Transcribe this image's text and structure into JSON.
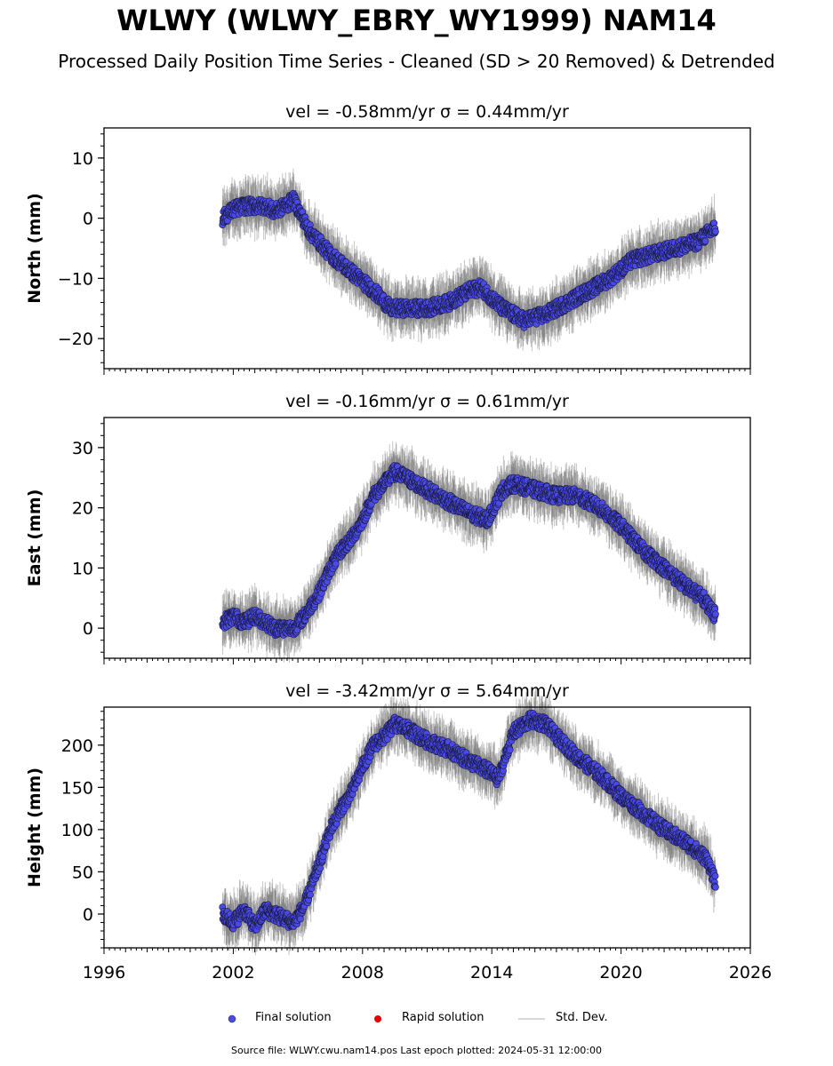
{
  "title": "WLWY (WLWY_EBRY_WY1999) NAM14",
  "subtitle": "Processed Daily Position Time Series - Cleaned (SD > 20 Removed) & Detrended",
  "footer": "Source file: WLWY.cwu.nam14.pos  Last epoch plotted: 2024-05-31 12:00:00",
  "legend": [
    {
      "label": "Final solution",
      "color": "#4a4ae8"
    },
    {
      "label": "Rapid solution",
      "color": "#e00000"
    },
    {
      "label": "Std. Dev.",
      "color": "#cccccc"
    }
  ],
  "chart_data": [
    {
      "type": "scatter",
      "panel_title": "vel = -0.58mm/yr   σ = 0.44mm/yr",
      "ylabel": "North (mm)",
      "xlim": [
        1996,
        2026
      ],
      "ylim": [
        -25,
        15
      ],
      "yticks": [
        10,
        0,
        -10,
        -20
      ],
      "ytick_labels": [
        "10",
        "0",
        "−10",
        "−20"
      ],
      "series": [
        {
          "x": [
            2001.5,
            2002.0,
            2002.5,
            2003.0,
            2003.6,
            2003.9,
            2004.8,
            2005.5,
            2006.5,
            2007.5,
            2008.5,
            2009.3,
            2010.0,
            2011.0,
            2012.0,
            2013.0,
            2013.5,
            2014.5,
            2015.5,
            2016.5,
            2017.5,
            2018.5,
            2019.5,
            2020.5,
            2021.5,
            2022.5,
            2023.5,
            2024.4
          ],
          "y": [
            0,
            1.5,
            2,
            2,
            2,
            1,
            3,
            -2,
            -6,
            -9,
            -12,
            -15,
            -15,
            -15,
            -14,
            -12,
            -11.5,
            -15,
            -17,
            -16,
            -14,
            -12,
            -10,
            -7,
            -6,
            -5,
            -4,
            -1.5
          ]
        }
      ]
    },
    {
      "type": "scatter",
      "panel_title": "vel = -0.16mm/yr   σ = 0.61mm/yr",
      "ylabel": "East (mm)",
      "xlim": [
        1996,
        2026
      ],
      "ylim": [
        -5,
        35
      ],
      "yticks": [
        30,
        20,
        10,
        0
      ],
      "ytick_labels": [
        "30",
        "20",
        "10",
        "0"
      ],
      "series": [
        {
          "x": [
            2001.5,
            2002.0,
            2002.5,
            2003.0,
            2003.5,
            2003.9,
            2004.8,
            2005.3,
            2006.0,
            2006.5,
            2007.0,
            2007.5,
            2008.0,
            2008.5,
            2009.0,
            2009.5,
            2010.0,
            2011.0,
            2012.0,
            2013.0,
            2013.8,
            2014.5,
            2015.0,
            2016.0,
            2017.0,
            2018.0,
            2019.0,
            2020.0,
            2021.0,
            2022.0,
            2023.0,
            2023.8,
            2024.4
          ],
          "y": [
            1,
            2,
            1,
            2,
            1,
            0,
            0,
            2,
            6,
            10,
            13,
            15,
            18,
            22,
            24,
            26,
            25,
            23,
            21,
            19,
            18,
            23,
            24,
            23,
            22,
            22,
            20,
            17,
            13,
            10,
            7,
            5,
            2
          ]
        }
      ]
    },
    {
      "type": "scatter",
      "panel_title": "vel = -3.42mm/yr   σ = 5.64mm/yr",
      "ylabel": "Height (mm)",
      "xlim": [
        1996,
        2026
      ],
      "ylim": [
        -40,
        245
      ],
      "yticks": [
        200,
        150,
        100,
        50,
        0
      ],
      "ytick_labels": [
        "200",
        "150",
        "100",
        "50",
        "0"
      ],
      "xticks": [
        1996,
        2002,
        2008,
        2014,
        2020,
        2026
      ],
      "xtick_labels": [
        "1996",
        "2002",
        "2008",
        "2014",
        "2020",
        "2026"
      ],
      "series": [
        {
          "x": [
            2001.5,
            2002.0,
            2002.5,
            2003.0,
            2003.5,
            2003.9,
            2004.8,
            2005.3,
            2006.0,
            2006.5,
            2007.0,
            2007.5,
            2008.0,
            2008.5,
            2009.0,
            2009.5,
            2010.0,
            2011.0,
            2012.0,
            2013.0,
            2013.8,
            2014.3,
            2015.0,
            2015.8,
            2016.5,
            2017.0,
            2018.0,
            2019.0,
            2020.0,
            2021.0,
            2022.0,
            2023.0,
            2024.0,
            2024.4
          ],
          "y": [
            0,
            -10,
            5,
            -15,
            5,
            0,
            -10,
            10,
            60,
            100,
            125,
            145,
            175,
            200,
            210,
            225,
            220,
            205,
            195,
            180,
            170,
            160,
            215,
            230,
            225,
            210,
            185,
            165,
            140,
            120,
            100,
            85,
            65,
            35
          ]
        }
      ]
    }
  ]
}
